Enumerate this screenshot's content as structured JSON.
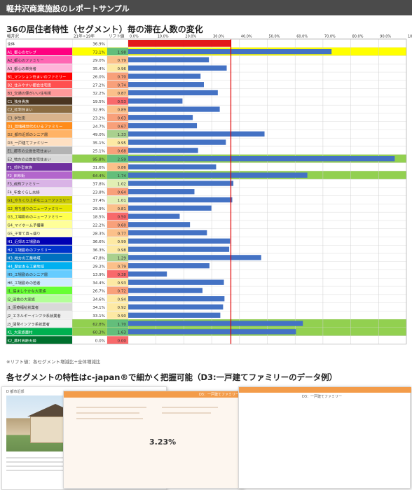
{
  "header": {
    "title": "軽井沢商業施設のレポートサンプル"
  },
  "section1_title": "36の居住者特性（セグメント）毎の滞在人数の変化",
  "footnote": "※リフト値：各セグメント増減比÷全体増減比",
  "section2_title": "各セグメントの特性はc-japan®で細かく把握可能（D3:一戸建てファミリーのデータ例）",
  "colors": {
    "bar": "#4472c4",
    "lift_line": "#e00000",
    "highlight_green": "#92d050",
    "highlight_yellow": "#ffff00"
  },
  "chart_data": {
    "type": "table",
    "headers": [
      "軽井沢",
      "21年÷19年",
      "リフト値"
    ],
    "x_ticks": [
      "0.0%",
      "10.0%",
      "20.0%",
      "30.0%",
      "40.0%",
      "50.0%",
      "60.0%",
      "70.0%",
      "80.0%",
      "90.0%",
      "100.0%"
    ],
    "xlim": [
      0,
      100
    ],
    "reference_value": 36.9,
    "rows": [
      {
        "label": "全体",
        "ratio": "36.9%",
        "value": 36.9,
        "lift": "",
        "label_color": "#ffffff",
        "label_text": "#333333",
        "row_highlight": "#ffffff"
      },
      {
        "label": "A1_都心のセレブ",
        "ratio": "73.1%",
        "value": 73.1,
        "lift": "1.98",
        "label_color": "#ff0080",
        "label_text": "#ffffff",
        "row_highlight": "#ffff00"
      },
      {
        "label": "A2_都心のファミリー",
        "ratio": "29.0%",
        "value": 29.0,
        "lift": "0.79",
        "label_color": "#ff66b3",
        "label_text": "#333333",
        "row_highlight": "#ffffff"
      },
      {
        "label": "A3_都心の単身者",
        "ratio": "35.4%",
        "value": 35.4,
        "lift": "0.96",
        "label_color": "#ffb3d9",
        "label_text": "#333333",
        "row_highlight": "#ffffff"
      },
      {
        "label": "B1_マンション住まいのファミリー",
        "ratio": "26.0%",
        "value": 26.0,
        "lift": "0.70",
        "label_color": "#ff0000",
        "label_text": "#ffffff",
        "row_highlight": "#ffffff"
      },
      {
        "label": "B2_住みやすい都会住宅街",
        "ratio": "27.2%",
        "value": 27.2,
        "lift": "0.74",
        "label_color": "#ff5050",
        "label_text": "#ffffff",
        "row_highlight": "#ffffff"
      },
      {
        "label": "B3_交通の便がいい住宅街",
        "ratio": "32.2%",
        "value": 32.2,
        "lift": "0.87",
        "label_color": "#ff9999",
        "label_text": "#333333",
        "row_highlight": "#ffffff"
      },
      {
        "label": "C1_独身貴族",
        "ratio": "19.5%",
        "value": 19.5,
        "lift": "0.53",
        "label_color": "#4a3520",
        "label_text": "#ffffff",
        "row_highlight": "#ffffff"
      },
      {
        "label": "C2_社宅住まい",
        "ratio": "32.9%",
        "value": 32.9,
        "lift": "0.89",
        "label_color": "#8b6c42",
        "label_text": "#ffffff",
        "row_highlight": "#ffffff"
      },
      {
        "label": "C3_学生街",
        "ratio": "23.2%",
        "value": 23.2,
        "lift": "0.63",
        "label_color": "#d9b38c",
        "label_text": "#333333",
        "row_highlight": "#ffffff"
      },
      {
        "label": "D1_団塊親世代のいるファミリー",
        "ratio": "24.7%",
        "value": 24.7,
        "lift": "0.67",
        "label_color": "#ff8c1a",
        "label_text": "#ffffff",
        "row_highlight": "#ffffff"
      },
      {
        "label": "D2_都市近郊のシニア層",
        "ratio": "49.0%",
        "value": 49.0,
        "lift": "1.33",
        "label_color": "#ffb366",
        "label_text": "#333333",
        "row_highlight": "#ffffff"
      },
      {
        "label": "D3_一戸建てファミリー",
        "ratio": "35.1%",
        "value": 35.1,
        "lift": "0.95",
        "label_color": "#ffe0c2",
        "label_text": "#333333",
        "row_highlight": "#ffffff"
      },
      {
        "label": "E1_都市の公営住宅住まい",
        "ratio": "25.1%",
        "value": 25.1,
        "lift": "0.68",
        "label_color": "#b3b3b3",
        "label_text": "#333333",
        "row_highlight": "#ffffff"
      },
      {
        "label": "E2_地方の公営住宅住まい",
        "ratio": "95.8%",
        "value": 95.8,
        "lift": "2.59",
        "label_color": "#d9d9d9",
        "label_text": "#333333",
        "row_highlight": "#92d050"
      },
      {
        "label": "F1_郊外型家族",
        "ratio": "31.6%",
        "value": 31.6,
        "lift": "0.86",
        "label_color": "#7030a0",
        "label_text": "#ffffff",
        "row_highlight": "#ffffff"
      },
      {
        "label": "F2_田布街",
        "ratio": "64.4%",
        "value": 64.4,
        "lift": "1.74",
        "label_color": "#b366cc",
        "label_text": "#ffffff",
        "row_highlight": "#92d050"
      },
      {
        "label": "F3_成熟ファミリー",
        "ratio": "37.8%",
        "value": 37.8,
        "lift": "1.02",
        "label_color": "#d9b3e6",
        "label_text": "#333333",
        "row_highlight": "#ffffff"
      },
      {
        "label": "F4_年金ぐらし夫婦",
        "ratio": "23.8%",
        "value": 23.8,
        "lift": "0.64",
        "label_color": "#f0dff5",
        "label_text": "#333333",
        "row_highlight": "#ffffff"
      },
      {
        "label": "G1_やりくり上手なニューファミリー",
        "ratio": "37.4%",
        "value": 37.4,
        "lift": "1.01",
        "label_color": "#c9c900",
        "label_text": "#333333",
        "row_highlight": "#ffffff"
      },
      {
        "label": "G2_育ち盛りのニューファミリー",
        "ratio": "29.9%",
        "value": 29.9,
        "lift": "0.81",
        "label_color": "#e6e600",
        "label_text": "#333333",
        "row_highlight": "#ffffff"
      },
      {
        "label": "G3_工場勤めのニューファミリー",
        "ratio": "18.5%",
        "value": 18.5,
        "lift": "0.50",
        "label_color": "#ffff4d",
        "label_text": "#333333",
        "row_highlight": "#ffffff"
      },
      {
        "label": "G4_マイホーム予備審",
        "ratio": "22.2%",
        "value": 22.2,
        "lift": "0.60",
        "label_color": "#ffff99",
        "label_text": "#333333",
        "row_highlight": "#ffffff"
      },
      {
        "label": "G5_子育て真っ盛り",
        "ratio": "28.3%",
        "value": 28.3,
        "lift": "0.77",
        "label_color": "#ffffcc",
        "label_text": "#333333",
        "row_highlight": "#ffffff"
      },
      {
        "label": "H1_近郊の工場勤め",
        "ratio": "36.6%",
        "value": 36.6,
        "lift": "0.99",
        "label_color": "#0000b3",
        "label_text": "#ffffff",
        "row_highlight": "#ffffff"
      },
      {
        "label": "H2_工場勤めのファミリー",
        "ratio": "36.3%",
        "value": 36.3,
        "lift": "0.98",
        "label_color": "#0033cc",
        "label_text": "#ffffff",
        "row_highlight": "#ffffff"
      },
      {
        "label": "H3_地方の工業地域",
        "ratio": "47.8%",
        "value": 47.8,
        "lift": "1.29",
        "label_color": "#0070c0",
        "label_text": "#ffffff",
        "row_highlight": "#ffffff"
      },
      {
        "label": "H4_歴史ある工業地域",
        "ratio": "29.2%",
        "value": 29.2,
        "lift": "0.79",
        "label_color": "#00b0f0",
        "label_text": "#ffffff",
        "row_highlight": "#ffffff"
      },
      {
        "label": "H5_工場勤めのシニア層",
        "ratio": "13.9%",
        "value": 13.9,
        "lift": "0.38",
        "label_color": "#66ccff",
        "label_text": "#333333",
        "row_highlight": "#ffffff"
      },
      {
        "label": "H6_工場勤めの若者",
        "ratio": "34.4%",
        "value": 34.4,
        "lift": "0.93",
        "label_color": "#ccecff",
        "label_text": "#333333",
        "row_highlight": "#ffffff"
      },
      {
        "label": "I1_協ましやかな大家族",
        "ratio": "26.7%",
        "value": 26.7,
        "lift": "0.72",
        "label_color": "#66ff33",
        "label_text": "#333333",
        "row_highlight": "#ffffff"
      },
      {
        "label": "I2_田舎の大家族",
        "ratio": "34.6%",
        "value": 34.6,
        "lift": "0.94",
        "label_color": "#b3ff99",
        "label_text": "#333333",
        "row_highlight": "#ffffff"
      },
      {
        "label": "J1_医療福祉就業者",
        "ratio": "34.1%",
        "value": 34.1,
        "lift": "0.92",
        "label_color": "#d9d9d9",
        "label_text": "#333333",
        "row_highlight": "#ffffff"
      },
      {
        "label": "J2_エネルギーインフラ系就業者",
        "ratio": "33.1%",
        "value": 33.1,
        "lift": "0.90",
        "label_color": "#eeeeee",
        "label_text": "#333333",
        "row_highlight": "#ffffff"
      },
      {
        "label": "J3_開発インフラ系就業者",
        "ratio": "62.8%",
        "value": 62.8,
        "lift": "1.70",
        "label_color": "#f2f2f2",
        "label_text": "#333333",
        "row_highlight": "#92d050"
      },
      {
        "label": "K1_大家族農村",
        "ratio": "60.3%",
        "value": 60.3,
        "lift": "1.63",
        "label_color": "#00b050",
        "label_text": "#ffffff",
        "row_highlight": "#92d050"
      },
      {
        "label": "K2_農村高齢夫婦",
        "ratio": "0.0%",
        "value": 0.0,
        "lift": "0.00",
        "label_color": "#00702e",
        "label_text": "#ffffff",
        "row_highlight": "#ffffff"
      }
    ]
  },
  "thumbs": {
    "card1_title": "D 都市近郊",
    "card2_header": "D3：一戸建てファミリー",
    "card2_percent": "3.23%",
    "card3_header": "D3：一戸建てファミリー"
  }
}
